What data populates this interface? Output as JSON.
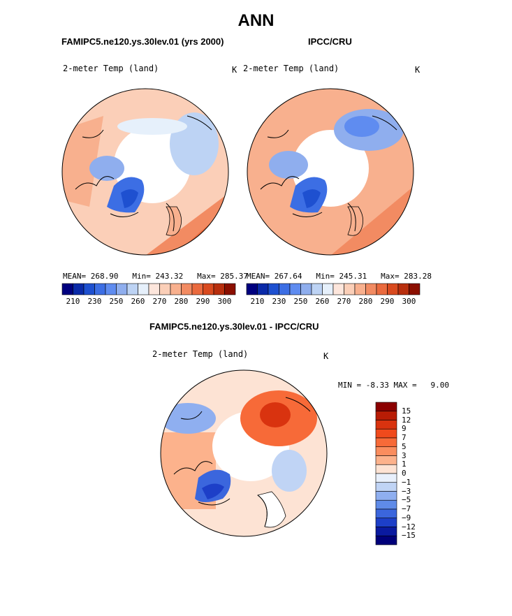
{
  "page_title": "ANN",
  "panels": [
    {
      "title": "FAMIPC5.ne120.ys.30lev.01 (yrs 2000)",
      "variable": "2-meter Temp (land)",
      "units": "K",
      "stats": {
        "mean": "268.90",
        "min": "243.32",
        "max": "285.37"
      }
    },
    {
      "title": "IPCC/CRU",
      "variable": "2-meter Temp (land)",
      "units": "K",
      "stats": {
        "mean": "267.64",
        "min": "245.31",
        "max": "283.28"
      }
    }
  ],
  "stats_labels": {
    "mean": "MEAN=",
    "min": "Min=",
    "max": "Max="
  },
  "colorbar": {
    "tick_labels": [
      "210",
      "230",
      "250",
      "260",
      "270",
      "280",
      "290",
      "300"
    ],
    "colors": [
      "#00007f",
      "#0a2aa8",
      "#1e50d0",
      "#3c6ee4",
      "#5f8cf0",
      "#8faeee",
      "#bdd3f4",
      "#e6f0fb",
      "#fde6dc",
      "#fbcfb8",
      "#f8b08e",
      "#f28b62",
      "#ea6a3e",
      "#d94a1f",
      "#b82f0e",
      "#8b0f00"
    ]
  },
  "difference": {
    "title": "FAMIPC5.ne120.ys.30lev.01 - IPCC/CRU",
    "variable": "2-meter Temp (land)",
    "units": "K",
    "min_label": "MIN =",
    "min_value": "-8.33",
    "max_label": "MAX =",
    "max_value": "9.00",
    "legend_labels": [
      "15",
      "12",
      "9",
      "7",
      "5",
      "3",
      "1",
      "0",
      "−1",
      "−3",
      "−5",
      "−7",
      "−9",
      "−12",
      "−15"
    ],
    "legend_colors": [
      "#8b0000",
      "#b81c05",
      "#d9330f",
      "#f04a1c",
      "#f76a38",
      "#fa8d5e",
      "#fcb28c",
      "#fde3d4",
      "#e8f0fc",
      "#c0d4f5",
      "#8faff0",
      "#5f8be8",
      "#3b66dd",
      "#1d3fc8",
      "#0a1aa0",
      "#00007a"
    ]
  }
}
